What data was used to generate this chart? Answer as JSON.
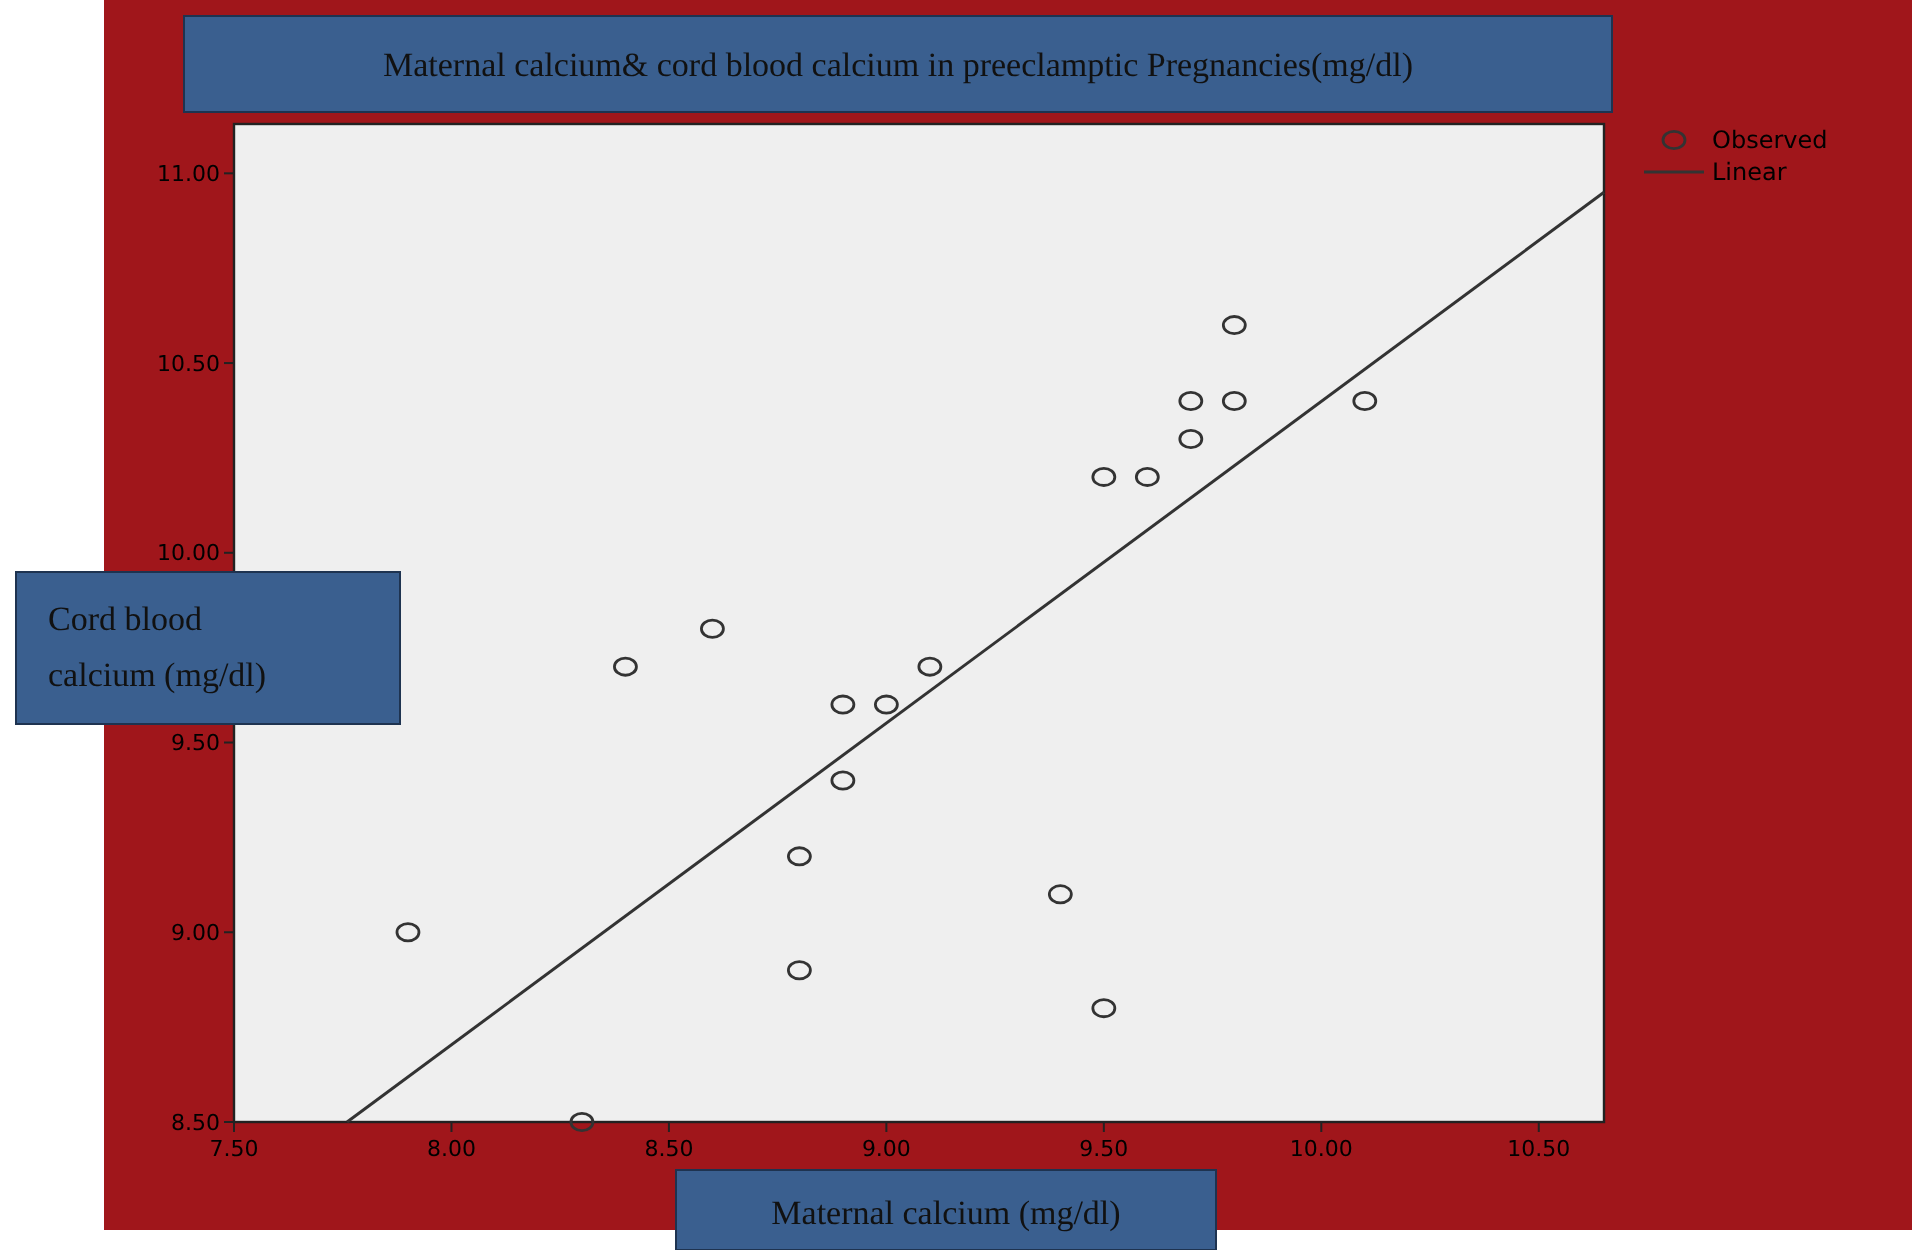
{
  "chart_data": {
    "type": "scatter",
    "title": "Maternal calcium& cord blood calcium in preeclamptic Pregnancies(mg/dl)",
    "xlabel": "Maternal calcium (mg/dl)",
    "ylabel": "Cord blood calcium (mg/dl)",
    "xlim": [
      7.5,
      10.65
    ],
    "xticks": [
      {
        "value": 7.5,
        "label": "7.50"
      },
      {
        "value": 8,
        "label": "8.00"
      },
      {
        "value": 8.5,
        "label": "8.50"
      },
      {
        "value": 9,
        "label": "9.00"
      },
      {
        "value": 9.5,
        "label": "9.50"
      },
      {
        "value": 10,
        "label": "10.00"
      },
      {
        "value": 10.5,
        "label": "10.50"
      }
    ],
    "ylim": [
      8.5,
      11.13
    ],
    "yticks": [
      {
        "value": 8.5,
        "label": "8.50"
      },
      {
        "value": 9,
        "label": "9.00"
      },
      {
        "value": 9.5,
        "label": "9.50"
      },
      {
        "value": 10,
        "label": "10.00"
      },
      {
        "value": 10.5,
        "label": "10.50"
      },
      {
        "value": 11,
        "label": "11.00"
      }
    ],
    "marker": "circle",
    "legend": "top right",
    "grid": false,
    "series": [
      {
        "name": "Observed",
        "color": "#333333",
        "x": [
          7.9,
          8.3,
          8.4,
          8.6,
          8.8,
          8.8,
          8.9,
          8.9,
          9.0,
          9.1,
          9.4,
          9.5,
          9.5,
          9.6,
          9.7,
          9.7,
          9.8,
          9.8,
          10.1
        ],
        "values": [
          9.0,
          8.5,
          9.7,
          9.8,
          9.2,
          8.9,
          9.6,
          9.4,
          9.6,
          9.7,
          9.1,
          8.8,
          10.2,
          10.2,
          10.4,
          10.3,
          10.6,
          10.4,
          10.4
        ]
      },
      {
        "name": "Linear",
        "type": "line",
        "marker": "none",
        "color": "#333333",
        "x": [
          7.76,
          10.65
        ],
        "values": [
          8.5,
          10.95
        ]
      }
    ]
  }
}
